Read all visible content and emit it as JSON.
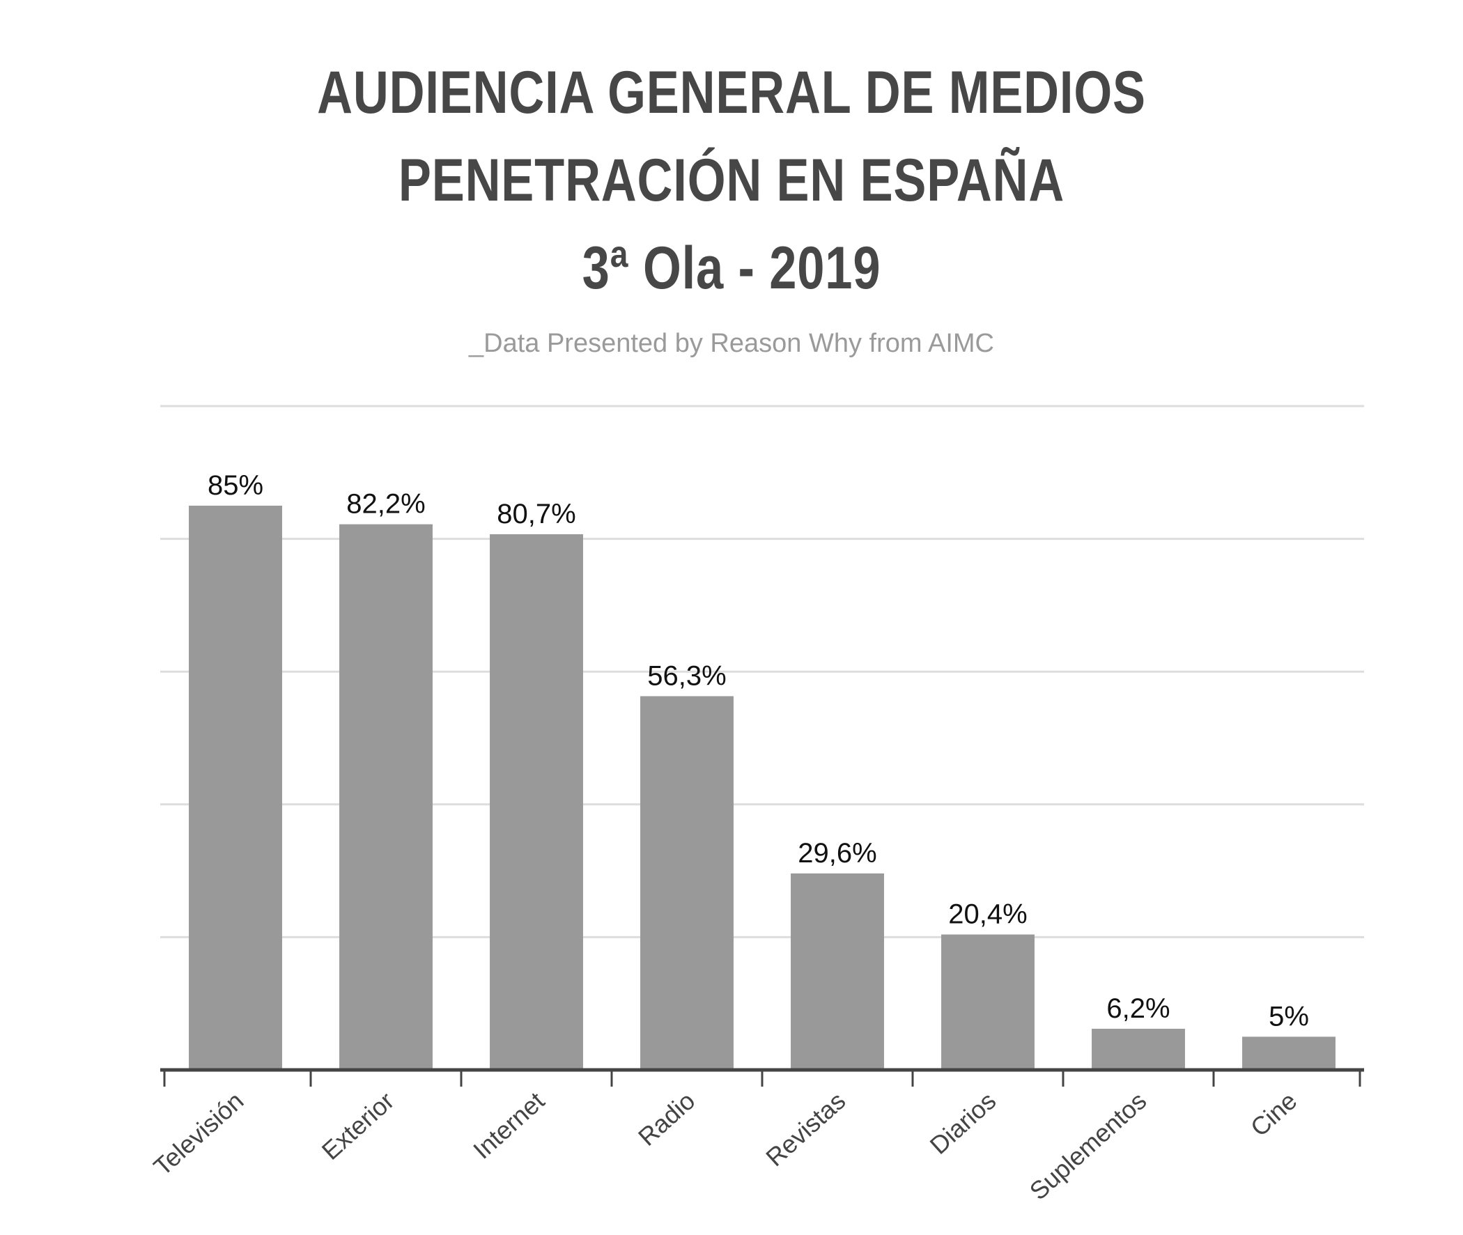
{
  "title": {
    "line1": "AUDIENCIA GENERAL DE MEDIOS",
    "line2": "PENETRACIÓN EN ESPAÑA",
    "line3": "3ª Ola - 2019"
  },
  "subtitle": "_Data Presented by Reason Why from AIMC",
  "colors": {
    "bar": "#999999",
    "grid": "#dddddd",
    "axis": "#444444",
    "title": "#474747",
    "subtitle": "#9a9a9a"
  },
  "chart_data": {
    "type": "bar",
    "title": "AUDIENCIA GENERAL DE MEDIOS PENETRACIÓN EN ESPAÑA 3ª Ola - 2019",
    "categories": [
      "Televisión",
      "Exterior",
      "Internet",
      "Radio",
      "Revistas",
      "Diarios",
      "Suplementos",
      "Cine"
    ],
    "values": [
      85,
      82.2,
      80.7,
      56.3,
      29.6,
      20.4,
      6.2,
      5
    ],
    "data_labels": [
      "85%",
      "82,2%",
      "80,7%",
      "56,3%",
      "29,6%",
      "20,4%",
      "6,2%",
      "5%"
    ],
    "xlabel": "",
    "ylabel": "",
    "ylim": [
      0,
      100
    ],
    "grid": true,
    "y_tick_labels_shown": false
  }
}
